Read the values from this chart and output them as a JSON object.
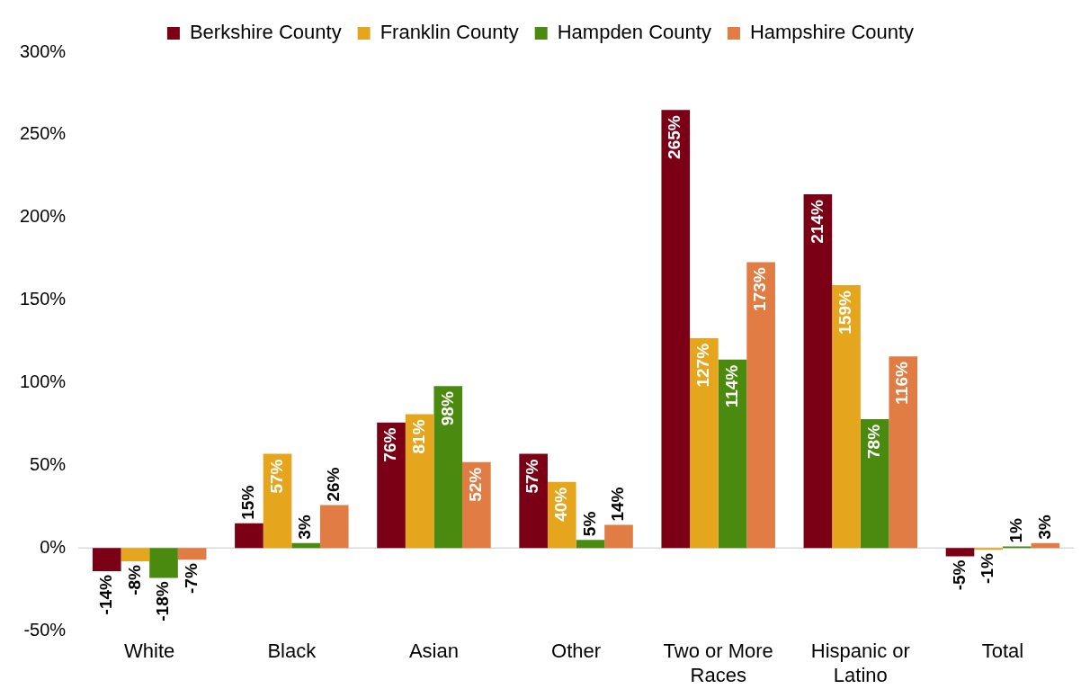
{
  "chart_data": {
    "type": "bar",
    "categories": [
      "White",
      "Black",
      "Asian",
      "Other",
      "Two or More Races",
      "Hispanic or Latino",
      "Total"
    ],
    "series": [
      {
        "name": "Berkshire County",
        "color": "#7b0015",
        "values": [
          -14,
          15,
          76,
          57,
          265,
          214,
          -5
        ],
        "value_labels": [
          "-14%",
          "15%",
          "76%",
          "57%",
          "265%",
          "214%",
          "-5%"
        ]
      },
      {
        "name": "Franklin County",
        "color": "#e5a61e",
        "values": [
          -8,
          57,
          81,
          40,
          127,
          159,
          -1
        ],
        "value_labels": [
          "-8%",
          "57%",
          "81%",
          "40%",
          "127%",
          "159%",
          "-1%"
        ]
      },
      {
        "name": "Hampden County",
        "color": "#4a8b0f",
        "values": [
          -18,
          3,
          98,
          5,
          114,
          78,
          1
        ],
        "value_labels": [
          "-18%",
          "3%",
          "98%",
          "5%",
          "114%",
          "78%",
          "1%"
        ]
      },
      {
        "name": "Hampshire County",
        "color": "#e07c44",
        "values": [
          -7,
          26,
          52,
          14,
          173,
          116,
          3
        ],
        "value_labels": [
          "-7%",
          "26%",
          "52%",
          "14%",
          "173%",
          "116%",
          "3%"
        ]
      }
    ],
    "ylim": [
      -50,
      300
    ],
    "yticks": [
      {
        "value": -50,
        "label": "-50%"
      },
      {
        "value": 0,
        "label": "0%"
      },
      {
        "value": 50,
        "label": "50%"
      },
      {
        "value": 100,
        "label": "100%"
      },
      {
        "value": 150,
        "label": "150%"
      },
      {
        "value": 200,
        "label": "200%"
      },
      {
        "value": 250,
        "label": "250%"
      },
      {
        "value": 300,
        "label": "300%"
      }
    ],
    "ref_lines": [
      {
        "axis": "y",
        "value": 0,
        "color": "#d9d9d9"
      }
    ],
    "legend": "top"
  }
}
